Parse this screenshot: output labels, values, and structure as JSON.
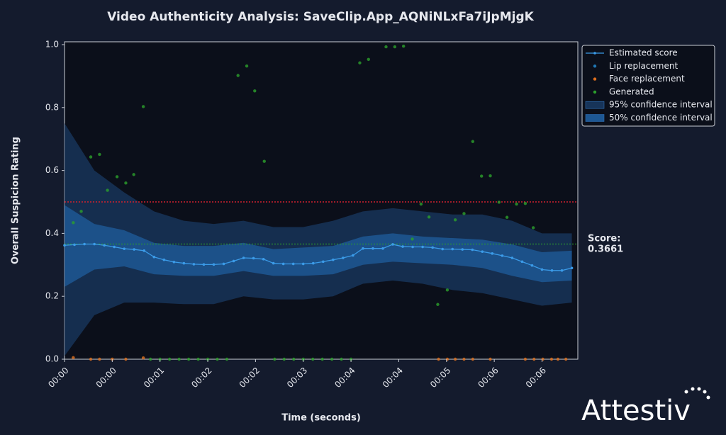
{
  "chart_data": {
    "type": "line",
    "title": "Video Authenticity Analysis: SaveClip.App_AQNiNLxFa7iJpMjgK",
    "x_label": "Time (seconds)",
    "y_label": "Overall Suspicion Rating",
    "xlim": [
      0,
      6.45
    ],
    "ylim": [
      0,
      1
    ],
    "xticks": [
      {
        "value": 0,
        "label": "00:00"
      },
      {
        "value": 0.6,
        "label": "00:00"
      },
      {
        "value": 1.2,
        "label": "00:01"
      },
      {
        "value": 1.8,
        "label": "00:02"
      },
      {
        "value": 2.4,
        "label": "00:02"
      },
      {
        "value": 3.0,
        "label": "00:03"
      },
      {
        "value": 3.6,
        "label": "00:04"
      },
      {
        "value": 4.2,
        "label": "00:04"
      },
      {
        "value": 4.8,
        "label": "00:05"
      },
      {
        "value": 5.4,
        "label": "00:06"
      },
      {
        "value": 6.0,
        "label": "00:06"
      }
    ],
    "yticks": [
      {
        "value": 0,
        "label": "0.0"
      },
      0.2,
      0.4,
      0.6,
      0.8,
      {
        "value": 1,
        "label": "1.0"
      }
    ],
    "threshold": 0.5,
    "threshold_color": "#d0202e",
    "score_label": "Score:",
    "score": 0.3661,
    "score_color": "#2ca02c",
    "x": [
      0,
      0.125,
      0.25,
      0.375,
      0.5,
      0.625,
      0.75,
      0.875,
      1,
      1.125,
      1.25,
      1.375,
      1.5,
      1.625,
      1.75,
      1.875,
      2,
      2.125,
      2.25,
      2.375,
      2.5,
      2.625,
      2.75,
      2.875,
      3,
      3.125,
      3.25,
      3.375,
      3.5,
      3.625,
      3.75,
      3.875,
      4,
      4.125,
      4.25,
      4.375,
      4.5,
      4.625,
      4.75,
      4.875,
      5,
      5.125,
      5.25,
      5.375,
      5.5,
      5.625,
      5.75,
      5.875,
      6,
      6.125,
      6.25,
      6.375
    ],
    "series": [
      {
        "name": "Estimated score",
        "color": "#3b9be8",
        "values": [
          0.362,
          0.364,
          0.366,
          0.366,
          0.362,
          0.357,
          0.351,
          0.349,
          0.345,
          0.325,
          0.316,
          0.309,
          0.305,
          0.302,
          0.301,
          0.301,
          0.303,
          0.312,
          0.322,
          0.321,
          0.318,
          0.305,
          0.303,
          0.303,
          0.303,
          0.305,
          0.31,
          0.316,
          0.322,
          0.33,
          0.352,
          0.352,
          0.352,
          0.365,
          0.358,
          0.357,
          0.357,
          0.355,
          0.35,
          0.35,
          0.349,
          0.348,
          0.342,
          0.336,
          0.329,
          0.322,
          0.31,
          0.298,
          0.285,
          0.282,
          0.282,
          0.29
        ]
      }
    ],
    "points": [
      {
        "name": "Lip replacement",
        "color": "#1f77b4",
        "x": [],
        "values": []
      },
      {
        "name": "Face replacement",
        "color": "#e0701e",
        "x": [
          0.11,
          0.33,
          0.44,
          0.6,
          0.77,
          0.99,
          4.7,
          4.81,
          4.91,
          5.02,
          5.13,
          5.35,
          5.79,
          5.9,
          6.01,
          6.12,
          6.2,
          6.3
        ],
        "values": [
          0.005,
          0,
          0,
          0,
          0,
          0.004,
          0,
          0,
          0,
          0,
          0,
          0,
          0,
          0,
          0,
          0,
          0,
          0
        ]
      },
      {
        "name": "Generated",
        "color": "#2ca02c",
        "x": [
          0.11,
          0.21,
          0.33,
          0.44,
          0.54,
          0.66,
          0.77,
          0.87,
          0.99,
          2.18,
          2.29,
          2.39,
          2.51,
          3.71,
          3.82,
          4.04,
          4.15,
          4.26,
          4.37,
          4.48,
          4.58,
          4.69,
          4.81,
          4.91,
          5.02,
          5.13,
          5.24,
          5.35,
          5.46,
          5.56,
          5.68,
          5.79,
          5.89,
          1.08,
          1.2,
          1.32,
          1.44,
          1.56,
          1.68,
          1.8,
          1.92,
          2.04,
          2.64,
          2.76,
          2.88,
          3.0,
          3.12,
          3.24,
          3.36,
          3.48,
          3.6
        ],
        "values": [
          0.434,
          0.47,
          0.643,
          0.651,
          0.537,
          0.58,
          0.56,
          0.587,
          0.803,
          0.902,
          0.932,
          0.853,
          0.629,
          0.942,
          0.953,
          0.993,
          0.993,
          0.995,
          0.382,
          0.493,
          0.452,
          0.174,
          0.22,
          0.443,
          0.463,
          0.692,
          0.582,
          0.583,
          0.499,
          0.451,
          0.493,
          0.495,
          0.418,
          0,
          0,
          0,
          0,
          0,
          0,
          0,
          0,
          0,
          0,
          0,
          0,
          0,
          0,
          0,
          0,
          0,
          0
        ]
      }
    ],
    "bands": [
      {
        "name": "95% confidence interval",
        "color": "#173459",
        "x": [
          0,
          0.375,
          0.75,
          1.125,
          1.5,
          1.875,
          2.25,
          2.625,
          3,
          3.375,
          3.75,
          4.125,
          4.5,
          4.875,
          5.25,
          5.625,
          6,
          6.375
        ],
        "lower": [
          0.01,
          0.14,
          0.18,
          0.18,
          0.175,
          0.175,
          0.2,
          0.19,
          0.19,
          0.2,
          0.24,
          0.25,
          0.24,
          0.22,
          0.21,
          0.19,
          0.17,
          0.18
        ],
        "upper": [
          0.75,
          0.6,
          0.53,
          0.47,
          0.44,
          0.43,
          0.44,
          0.42,
          0.42,
          0.44,
          0.47,
          0.48,
          0.47,
          0.46,
          0.46,
          0.44,
          0.4,
          0.4
        ]
      },
      {
        "name": "50% confidence interval",
        "color": "#1d5793",
        "x": [
          0,
          0.375,
          0.75,
          1.125,
          1.5,
          1.875,
          2.25,
          2.625,
          3,
          3.375,
          3.75,
          4.125,
          4.5,
          4.875,
          5.25,
          5.625,
          6,
          6.375
        ],
        "lower": [
          0.23,
          0.285,
          0.295,
          0.27,
          0.265,
          0.265,
          0.28,
          0.265,
          0.265,
          0.27,
          0.3,
          0.31,
          0.305,
          0.3,
          0.29,
          0.265,
          0.245,
          0.25
        ],
        "upper": [
          0.49,
          0.43,
          0.41,
          0.37,
          0.36,
          0.36,
          0.37,
          0.35,
          0.355,
          0.36,
          0.39,
          0.4,
          0.39,
          0.385,
          0.38,
          0.365,
          0.34,
          0.345
        ]
      }
    ],
    "legend": "upper right",
    "brand": "Attestiv"
  }
}
